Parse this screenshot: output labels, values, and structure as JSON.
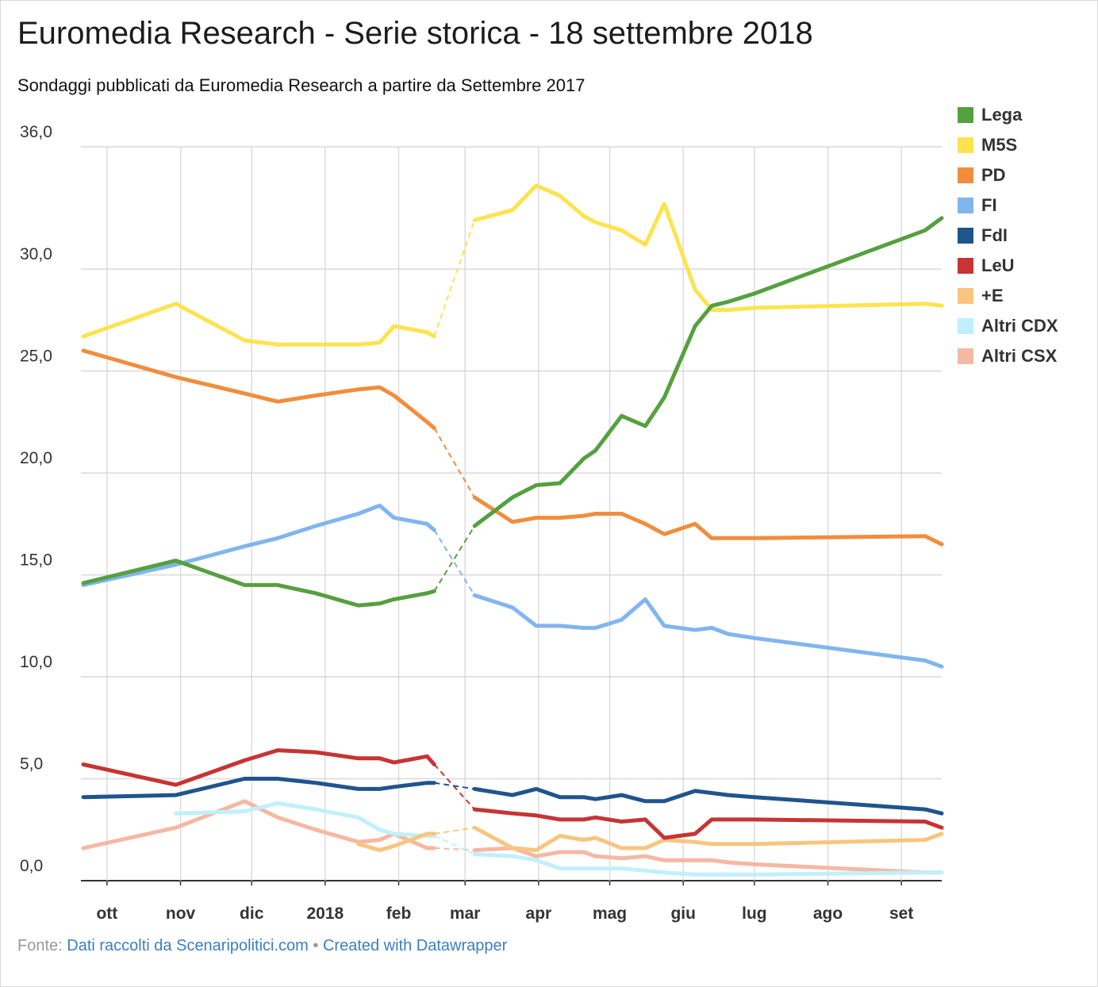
{
  "title": "Euromedia Research - Serie storica - 18 settembre 2018",
  "subtitle": "Sondaggi pubblicati da Euromedia Research a partire da Settembre 2017",
  "footer": {
    "prefix": "Fonte:",
    "source_link": "Dati raccolti da Scenaripolitici.com",
    "separator": "•",
    "credit_link": "Created with Datawrapper"
  },
  "chart_data": {
    "type": "line",
    "title": "Euromedia Research - Serie storica - 18 settembre 2018",
    "subtitle": "Sondaggi pubblicati da Euromedia Research a partire da Settembre 2017",
    "xlabel": "",
    "ylabel": "",
    "x_range": [
      "2017-09-21",
      "2018-09-18"
    ],
    "ylim": [
      0,
      36
    ],
    "y_ticks": [
      {
        "value": 0,
        "label": "0,0"
      },
      {
        "value": 5,
        "label": "5,0"
      },
      {
        "value": 10,
        "label": "10,0"
      },
      {
        "value": 15,
        "label": "15,0"
      },
      {
        "value": 20,
        "label": "20,0"
      },
      {
        "value": 25,
        "label": "25,0"
      },
      {
        "value": 30,
        "label": "30,0"
      },
      {
        "value": 36,
        "label": "36,0"
      }
    ],
    "x_ticks": [
      {
        "date": "2017-10-01",
        "label": "ott"
      },
      {
        "date": "2017-11-01",
        "label": "nov"
      },
      {
        "date": "2017-12-01",
        "label": "dic"
      },
      {
        "date": "2018-01-01",
        "label": "2018"
      },
      {
        "date": "2018-02-01",
        "label": "feb"
      },
      {
        "date": "2018-03-01",
        "label": "mar"
      },
      {
        "date": "2018-04-01",
        "label": "apr"
      },
      {
        "date": "2018-05-01",
        "label": "mag"
      },
      {
        "date": "2018-06-01",
        "label": "giu"
      },
      {
        "date": "2018-07-01",
        "label": "lug"
      },
      {
        "date": "2018-08-01",
        "label": "ago"
      },
      {
        "date": "2018-09-01",
        "label": "set"
      }
    ],
    "gap": {
      "from": "2018-02-16",
      "to": "2018-03-05",
      "style": "dashed"
    },
    "grid": true,
    "legend": "right",
    "dates": [
      "2017-09-21",
      "2017-10-30",
      "2017-11-28",
      "2017-12-12",
      "2017-12-28",
      "2018-01-15",
      "2018-01-24",
      "2018-01-30",
      "2018-02-13",
      "2018-02-16",
      "2018-03-05",
      "2018-03-21",
      "2018-03-31",
      "2018-04-10",
      "2018-04-20",
      "2018-04-25",
      "2018-05-06",
      "2018-05-16",
      "2018-05-24",
      "2018-06-06",
      "2018-06-13",
      "2018-06-20",
      "2018-07-01",
      "2018-09-11",
      "2018-09-18"
    ],
    "series": [
      {
        "name": "Lega",
        "color": "#55a03f",
        "values": [
          14.6,
          15.7,
          14.5,
          14.5,
          14.1,
          13.5,
          13.6,
          13.8,
          14.1,
          14.2,
          17.4,
          18.8,
          19.4,
          19.5,
          20.7,
          21.1,
          22.8,
          22.3,
          23.7,
          27.2,
          28.2,
          28.4,
          28.8,
          31.9,
          32.5
        ]
      },
      {
        "name": "M5S",
        "color": "#fde34e",
        "values": [
          26.7,
          28.3,
          26.5,
          26.3,
          26.3,
          26.3,
          26.4,
          27.2,
          26.9,
          26.7,
          32.4,
          32.9,
          34.1,
          33.6,
          32.6,
          32.3,
          31.9,
          31.2,
          33.2,
          29.0,
          28.0,
          28.0,
          28.1,
          28.3,
          28.2
        ]
      },
      {
        "name": "PD",
        "color": "#f18d3d",
        "values": [
          26.0,
          24.7,
          23.9,
          23.5,
          23.8,
          24.1,
          24.2,
          23.8,
          22.5,
          22.2,
          18.8,
          17.6,
          17.8,
          17.8,
          17.9,
          18.0,
          18.0,
          17.5,
          17.0,
          17.5,
          16.8,
          16.8,
          16.8,
          16.9,
          16.5
        ]
      },
      {
        "name": "FI",
        "color": "#81b5ee",
        "values": [
          14.5,
          15.5,
          16.4,
          16.8,
          17.4,
          18.0,
          18.4,
          17.8,
          17.5,
          17.2,
          14.0,
          13.4,
          12.5,
          12.5,
          12.4,
          12.4,
          12.8,
          13.8,
          12.5,
          12.3,
          12.4,
          12.1,
          11.9,
          10.8,
          10.5
        ]
      },
      {
        "name": "FdI",
        "color": "#20548d",
        "values": [
          4.1,
          4.2,
          5.0,
          5.0,
          4.8,
          4.5,
          4.5,
          4.6,
          4.8,
          4.8,
          4.5,
          4.2,
          4.5,
          4.1,
          4.1,
          4.0,
          4.2,
          3.9,
          3.9,
          4.4,
          4.3,
          4.2,
          4.1,
          3.5,
          3.3
        ]
      },
      {
        "name": "LeU",
        "color": "#c73434",
        "values": [
          5.7,
          4.7,
          5.9,
          6.4,
          6.3,
          6.0,
          6.0,
          5.8,
          6.1,
          5.7,
          3.5,
          3.3,
          3.2,
          3.0,
          3.0,
          3.1,
          2.9,
          3.0,
          2.1,
          2.3,
          3.0,
          3.0,
          3.0,
          2.9,
          2.6
        ]
      },
      {
        "name": "+E",
        "color": "#f8c57f",
        "values": [
          null,
          null,
          null,
          null,
          null,
          1.8,
          1.5,
          1.7,
          2.3,
          2.3,
          2.6,
          1.6,
          1.5,
          2.2,
          2.0,
          2.1,
          1.6,
          1.6,
          2.0,
          1.9,
          1.8,
          1.8,
          1.8,
          2.0,
          2.3
        ]
      },
      {
        "name": "Altri CDX",
        "color": "#c0f0fb",
        "values": [
          null,
          3.3,
          3.4,
          3.8,
          3.5,
          3.1,
          2.5,
          2.3,
          2.2,
          2.2,
          1.3,
          1.2,
          1.0,
          0.6,
          0.6,
          0.6,
          0.6,
          0.5,
          0.4,
          0.3,
          0.3,
          0.3,
          0.3,
          0.4,
          0.4
        ]
      },
      {
        "name": "Altri CSX",
        "color": "#f5b8a3",
        "values": [
          1.6,
          2.6,
          3.9,
          3.1,
          2.5,
          1.9,
          2.0,
          2.3,
          1.6,
          1.6,
          1.5,
          1.6,
          1.2,
          1.4,
          1.4,
          1.2,
          1.1,
          1.2,
          1.0,
          1.0,
          1.0,
          0.9,
          0.8,
          0.4,
          0.4
        ]
      }
    ]
  }
}
